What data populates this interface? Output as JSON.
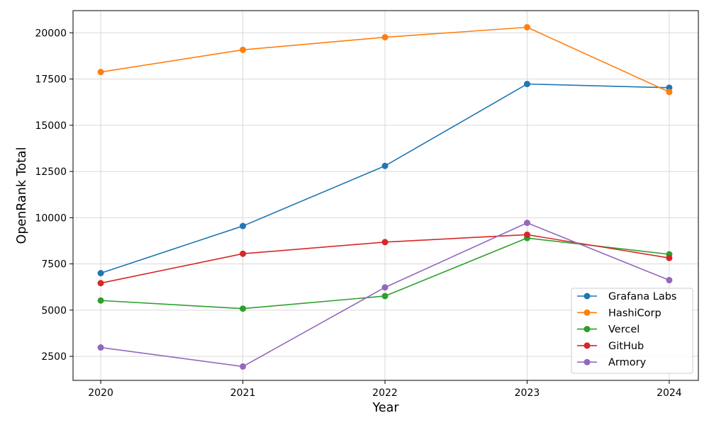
{
  "chart_data": {
    "type": "line",
    "x": [
      2020,
      2021,
      2022,
      2023,
      2024
    ],
    "xlabel": "Year",
    "ylabel": "OpenRank Total",
    "ylim": [
      1200,
      21200
    ],
    "yticks": [
      2500,
      5000,
      7500,
      10000,
      12500,
      15000,
      17500,
      20000
    ],
    "grid": true,
    "legend_position": "lower-right",
    "series": [
      {
        "name": "Grafana Labs",
        "color": "#1f77b4",
        "values": [
          7000,
          9550,
          12800,
          17230,
          17030
        ]
      },
      {
        "name": "HashiCorp",
        "color": "#ff7f0e",
        "values": [
          17880,
          19080,
          19760,
          20300,
          16800
        ]
      },
      {
        "name": "Vercel",
        "color": "#2ca02c",
        "values": [
          5520,
          5080,
          5760,
          8900,
          8020
        ]
      },
      {
        "name": "GitHub",
        "color": "#d62728",
        "values": [
          6460,
          8050,
          8680,
          9080,
          7820
        ]
      },
      {
        "name": "Armory",
        "color": "#9467bd",
        "values": [
          2980,
          1950,
          6230,
          9720,
          6620
        ]
      }
    ]
  }
}
